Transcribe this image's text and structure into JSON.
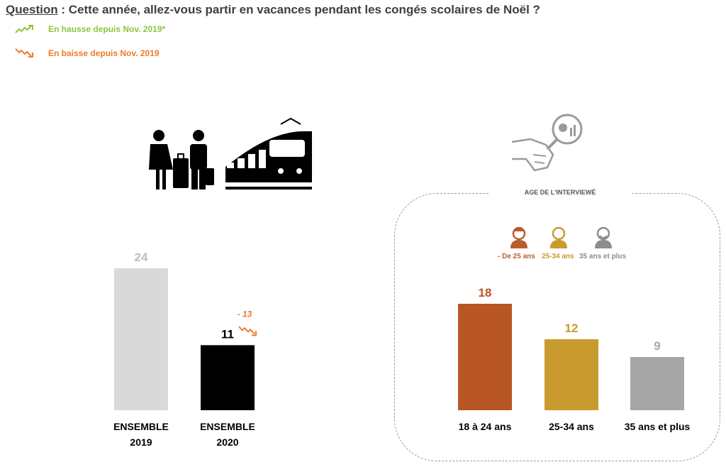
{
  "question": {
    "label": "Question",
    "text": " : Cette année, allez-vous partir en vacances pendant les congés scolaires de Noël ?"
  },
  "legend": {
    "up": {
      "label": "En hausse depuis Nov. 2019*",
      "color": "#8cc63e",
      "icon": "trend-up-icon"
    },
    "down": {
      "label": "En baisse depuis Nov. 2019",
      "color": "#f07a2a",
      "icon": "trend-down-icon"
    }
  },
  "age_section": {
    "title": "AGE DE L'INTERVIEWÉ",
    "groups": [
      {
        "label": "- De 25 ans",
        "color": "#b85c2a",
        "icon": "young-person-icon"
      },
      {
        "label": "25-34 ans",
        "color": "#c99a2e",
        "icon": "adult-person-icon"
      },
      {
        "label": "35 ans et plus",
        "color": "#8c8c8c",
        "icon": "older-person-icon"
      }
    ]
  },
  "chart_data": [
    {
      "type": "bar",
      "categories": [
        "ENSEMBLE\n2019",
        "ENSEMBLE\n2020"
      ],
      "values": [
        24,
        11
      ],
      "colors": [
        "#d9d9d9",
        "#000000"
      ],
      "label_colors": [
        "#bfbfbf",
        "#000000"
      ],
      "annotations": [
        {
          "category": "ENSEMBLE\n2020",
          "text": "- 13",
          "color": "#f07a2a",
          "icon": "trend-down-icon"
        }
      ]
    },
    {
      "type": "bar",
      "categories": [
        "18 à 24 ans",
        "25-34 ans",
        "35 ans et plus"
      ],
      "values": [
        18,
        12,
        9
      ],
      "colors": [
        "#b85624",
        "#c99a2e",
        "#a6a6a6"
      ],
      "label_colors": [
        "#b85624",
        "#c99a2e",
        "#a6a6a6"
      ]
    }
  ]
}
